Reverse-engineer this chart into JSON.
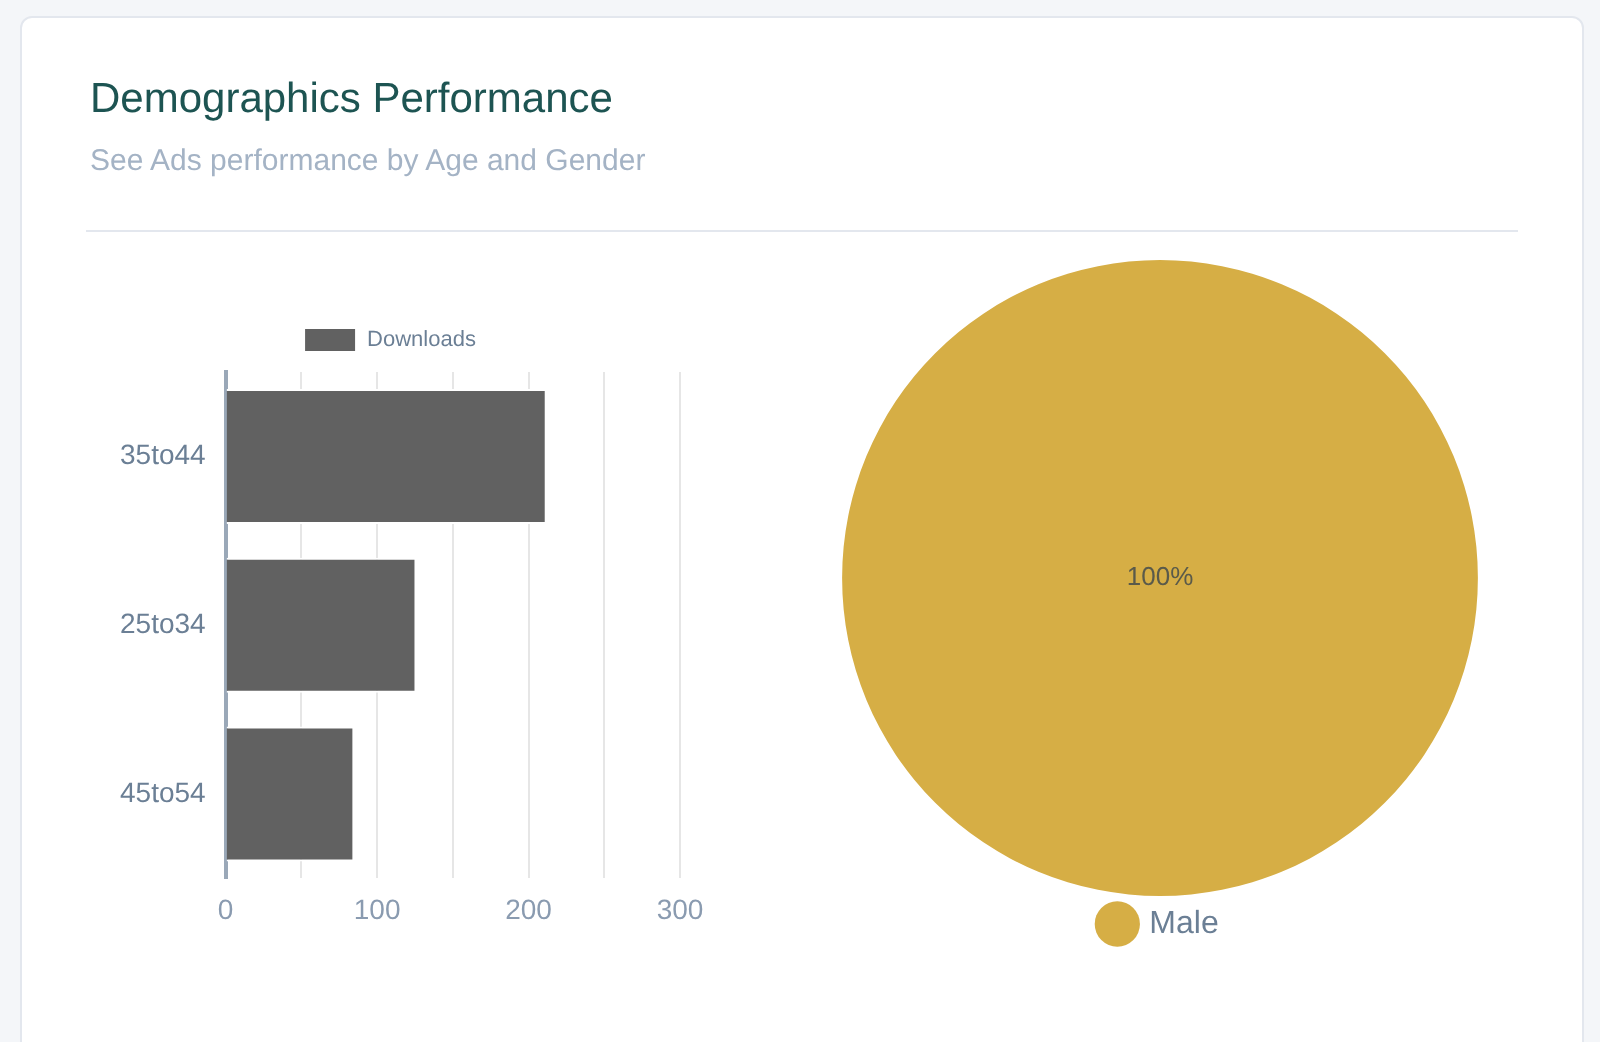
{
  "chart_data": [
    {
      "type": "bar",
      "title": "Demographics Performance",
      "subtitle": "See Ads performance by Age and Gender",
      "orientation": "horizontal",
      "categories": [
        "35to44",
        "25to34",
        "45to54"
      ],
      "series": [
        {
          "name": "Downloads",
          "color": "#616161",
          "values": [
            212,
            126,
            85
          ]
        }
      ],
      "xlim": [
        0,
        300
      ],
      "xticks": [
        0,
        {
          "value": 50,
          "label": null
        },
        100,
        {
          "value": 150,
          "label": null
        },
        200,
        {
          "value": 250,
          "label": null
        },
        300
      ],
      "grid": "x",
      "legend": "top"
    },
    {
      "type": "pie",
      "categories": [
        "Male"
      ],
      "values": [
        100
      ],
      "colors": [
        "#d6ae45"
      ],
      "value_labels": [
        "100%"
      ],
      "legend": "bottom"
    }
  ]
}
